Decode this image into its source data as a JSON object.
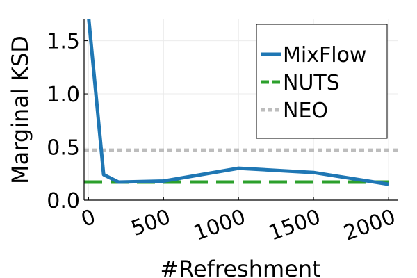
{
  "colors": {
    "mixflow": "#1f77b4",
    "nuts": "#2ca02c",
    "neo": "#bdbdbd",
    "axis": "#000000",
    "grid": "#ebebeb"
  },
  "chart_data": {
    "type": "line",
    "xlabel": "#Refreshment",
    "ylabel": "Marginal KSD",
    "xlim": [
      -30,
      2060
    ],
    "ylim": [
      0,
      1.7
    ],
    "xticks": [
      0,
      500,
      1000,
      1500,
      2000
    ],
    "xtick_labels": [
      "0",
      "500",
      "1000",
      "1500",
      "2000"
    ],
    "yticks": [
      0,
      0.5,
      1.0,
      1.5
    ],
    "ytick_labels": [
      "0.0",
      "0.5",
      "1.0",
      "1.5"
    ],
    "grid": true,
    "legend_position": "top-right",
    "series": [
      {
        "name": "MixFlow",
        "style": "solid",
        "color": "#1f77b4",
        "x": [
          0,
          100,
          200,
          500,
          1000,
          1500,
          2000
        ],
        "y": [
          1.72,
          0.24,
          0.17,
          0.18,
          0.3,
          0.26,
          0.15
        ]
      },
      {
        "name": "NUTS",
        "style": "dashed",
        "color": "#2ca02c",
        "x": [
          -30,
          2000
        ],
        "y": [
          0.17,
          0.17
        ]
      },
      {
        "name": "NEO",
        "style": "dotted",
        "color": "#bdbdbd",
        "x": [
          -30,
          2060
        ],
        "y": [
          0.47,
          0.47
        ]
      }
    ]
  }
}
